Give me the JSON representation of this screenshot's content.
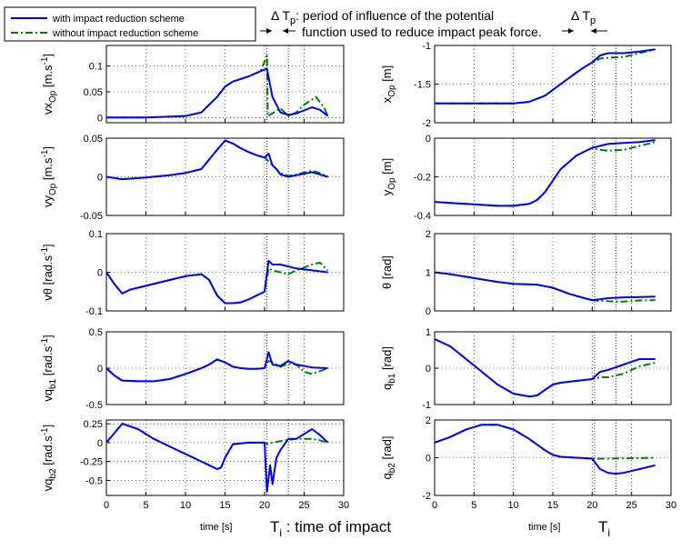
{
  "figure": {
    "legend": [
      {
        "label": "with impact reduction scheme",
        "color": "#0000ff",
        "dash": "solid"
      },
      {
        "label": "without impact reduction scheme",
        "color": "#008000",
        "dash": "dashdot"
      }
    ],
    "annotation_title": "Δ T",
    "annotation_title_sub": "p",
    "annotation_line1": ": period of influence of the potential",
    "annotation_line2": "function used to reduce impact peak force.",
    "annotation_right": "Δ T",
    "annotation_right_sub": "p",
    "impact_label": "T",
    "impact_label_sub": "i",
    "impact_label_rest": " : time of impact",
    "impact_label_right": "T",
    "impact_label_right_sub": "i",
    "xlabel_left": "time [s]",
    "xlabel_right": "time [s]"
  },
  "chart_data": [
    {
      "type": "line",
      "panel": "left-1",
      "ylabel": "vx_Op [m.s^-1]",
      "ylim": [
        -0.01,
        0.14
      ],
      "yticks": [
        0,
        0.05,
        0.1
      ],
      "yticklabels": [
        "0",
        "0.05",
        "0.1"
      ],
      "xlim": [
        0,
        30
      ],
      "series": [
        {
          "name": "with impact reduction scheme",
          "x": [
            0,
            5,
            10,
            12,
            14,
            15,
            16,
            18,
            19.5,
            20.3,
            21,
            21.5,
            22,
            23,
            24,
            26,
            27,
            28
          ],
          "y": [
            0,
            0,
            0.003,
            0.01,
            0.04,
            0.06,
            0.07,
            0.08,
            0.09,
            0.095,
            0.04,
            0.025,
            0.01,
            0.005,
            0.008,
            0.02,
            0.015,
            0.003
          ]
        },
        {
          "name": "without impact reduction scheme",
          "x": [
            0,
            5,
            10,
            12,
            14,
            15,
            16,
            18,
            19.5,
            20.3,
            20.4,
            21,
            22,
            23,
            24,
            25,
            26.5,
            27.5,
            28
          ],
          "y": [
            0,
            0,
            0.003,
            0.01,
            0.04,
            0.06,
            0.07,
            0.08,
            0.09,
            0.12,
            0.003,
            0.008,
            0.018,
            0.003,
            0.01,
            0.025,
            0.04,
            0.02,
            0.003
          ]
        }
      ]
    },
    {
      "type": "line",
      "panel": "left-2",
      "ylabel": "vy_Op [m.s^-1]",
      "ylim": [
        -0.05,
        0.05
      ],
      "yticks": [
        -0.05,
        0,
        0.05
      ],
      "yticklabels": [
        "-0.05",
        "0",
        "0.05"
      ],
      "xlim": [
        0,
        30
      ],
      "series": [
        {
          "name": "with impact reduction scheme",
          "x": [
            0,
            2,
            5,
            8,
            10,
            12,
            14,
            15,
            16,
            17,
            18,
            19,
            20,
            20.5,
            21,
            21.5,
            22,
            23,
            24,
            26,
            27,
            28
          ],
          "y": [
            0,
            -0.003,
            -0.001,
            0.002,
            0.005,
            0.01,
            0.035,
            0.047,
            0.043,
            0.037,
            0.032,
            0.028,
            0.025,
            0.03,
            0.015,
            0.01,
            0.003,
            0,
            0.002,
            0.006,
            0.003,
            0
          ]
        },
        {
          "name": "without impact reduction scheme",
          "x": [
            0,
            2,
            5,
            8,
            10,
            12,
            14,
            15,
            16,
            17,
            18,
            19,
            20,
            20.5,
            21,
            22,
            23,
            24,
            26,
            27,
            28
          ],
          "y": [
            0,
            -0.003,
            -0.001,
            0.002,
            0.005,
            0.01,
            0.035,
            0.047,
            0.043,
            0.037,
            0.032,
            0.028,
            0.025,
            0.02,
            0.015,
            0.005,
            0.001,
            0.003,
            0.008,
            0.005,
            0
          ]
        }
      ]
    },
    {
      "type": "line",
      "panel": "left-3",
      "ylabel": "vθ [rad.s^-1]",
      "ylim": [
        -0.1,
        0.1
      ],
      "yticks": [
        -0.1,
        0,
        0.1
      ],
      "yticklabels": [
        "-0.1",
        "0",
        "0.1"
      ],
      "xlim": [
        0,
        30
      ],
      "series": [
        {
          "name": "with impact reduction scheme",
          "x": [
            0,
            1,
            2,
            3,
            5,
            8,
            10,
            12,
            13,
            14,
            15,
            16,
            17,
            18,
            19,
            20,
            20.5,
            21,
            22,
            23,
            24,
            26,
            28
          ],
          "y": [
            0,
            -0.03,
            -0.055,
            -0.045,
            -0.035,
            -0.02,
            -0.01,
            -0.005,
            -0.02,
            -0.06,
            -0.08,
            -0.08,
            -0.078,
            -0.07,
            -0.06,
            -0.05,
            0.03,
            0.02,
            0.02,
            0.015,
            0.01,
            0.005,
            0
          ]
        },
        {
          "name": "without impact reduction scheme",
          "x": [
            0,
            1,
            2,
            3,
            5,
            8,
            10,
            12,
            13,
            14,
            15,
            16,
            17,
            18,
            19,
            20,
            20.5,
            21,
            22,
            23,
            24,
            26,
            27,
            28
          ],
          "y": [
            0,
            -0.03,
            -0.055,
            -0.045,
            -0.035,
            -0.02,
            -0.01,
            -0.005,
            -0.02,
            -0.06,
            -0.08,
            -0.08,
            -0.078,
            -0.07,
            -0.06,
            -0.05,
            0.01,
            0.005,
            0,
            -0.005,
            0.005,
            0.02,
            0.025,
            0.005
          ]
        }
      ]
    },
    {
      "type": "line",
      "panel": "left-4",
      "ylabel": "vq_b1 [rad.s^-1]",
      "ylim": [
        -0.5,
        0.5
      ],
      "yticks": [
        -0.5,
        0,
        0.5
      ],
      "yticklabels": [
        "-0.5",
        "0",
        "0.5"
      ],
      "xlim": [
        0,
        30
      ],
      "series": [
        {
          "name": "with impact reduction scheme",
          "x": [
            0,
            1,
            2,
            4,
            6,
            8,
            10,
            12,
            13,
            14,
            15,
            16,
            17,
            18,
            19,
            20,
            20.5,
            21,
            22,
            23,
            24,
            26,
            28
          ],
          "y": [
            0,
            -0.1,
            -0.17,
            -0.18,
            -0.18,
            -0.15,
            -0.08,
            0,
            0.05,
            0.12,
            0.08,
            0.02,
            0,
            -0.01,
            -0.01,
            0,
            0.22,
            0.05,
            0.03,
            0.1,
            0.05,
            0.01,
            0
          ]
        },
        {
          "name": "without impact reduction scheme",
          "x": [
            0,
            1,
            2,
            4,
            6,
            8,
            10,
            12,
            13,
            14,
            15,
            16,
            17,
            18,
            19,
            20,
            20.5,
            21,
            22,
            23,
            24,
            25,
            26,
            28
          ],
          "y": [
            0,
            -0.1,
            -0.17,
            -0.18,
            -0.18,
            -0.15,
            -0.08,
            0,
            0.05,
            0.12,
            0.08,
            0.02,
            0,
            -0.01,
            -0.01,
            0,
            0.1,
            0.08,
            0.02,
            0.06,
            0.05,
            -0.05,
            -0.08,
            0
          ]
        }
      ]
    },
    {
      "type": "line",
      "panel": "left-5",
      "ylabel": "vq_b2 [rad.s^-1]",
      "ylim": [
        -0.7,
        0.3
      ],
      "yticks": [
        -0.5,
        -0.25,
        0,
        0.25
      ],
      "yticklabels": [
        "-0.5",
        "-0.25",
        "0",
        "0.25"
      ],
      "xlim": [
        0,
        30
      ],
      "series": [
        {
          "name": "with impact reduction scheme",
          "x": [
            0,
            2,
            4,
            6,
            8,
            10,
            12,
            14,
            14.5,
            15,
            16,
            18,
            19,
            20,
            20.3,
            20.7,
            21,
            21.5,
            22,
            23,
            24,
            26,
            27,
            28
          ],
          "y": [
            0,
            0.25,
            0.18,
            0.05,
            -0.05,
            -0.15,
            -0.25,
            -0.35,
            -0.33,
            -0.2,
            -0.02,
            0,
            0,
            0,
            -0.65,
            -0.3,
            -0.55,
            -0.2,
            -0.1,
            0.05,
            0.05,
            0.18,
            0.1,
            0
          ]
        },
        {
          "name": "without impact reduction scheme",
          "x": [
            0,
            2,
            4,
            6,
            8,
            10,
            12,
            14,
            14.5,
            15,
            16,
            18,
            19,
            20,
            20.5,
            21,
            22,
            24,
            26,
            27,
            28
          ],
          "y": [
            0,
            0.25,
            0.18,
            0.05,
            -0.05,
            -0.15,
            -0.25,
            -0.35,
            -0.33,
            -0.2,
            -0.02,
            0,
            0,
            0,
            -0.02,
            0,
            0.02,
            0.05,
            0.05,
            0.03,
            0
          ]
        }
      ]
    },
    {
      "type": "line",
      "panel": "right-1",
      "ylabel": "x_Op [m]",
      "ylim": [
        -2,
        -1
      ],
      "yticks": [
        -2,
        -1.5,
        -1
      ],
      "yticklabels": [
        "-2",
        "-1.5",
        "-1"
      ],
      "xlim": [
        0,
        30
      ],
      "series": [
        {
          "name": "with impact reduction scheme",
          "x": [
            0,
            5,
            10,
            12,
            14,
            16,
            18,
            19,
            20,
            21,
            22,
            24,
            26,
            28
          ],
          "y": [
            -1.75,
            -1.75,
            -1.75,
            -1.73,
            -1.65,
            -1.5,
            -1.35,
            -1.28,
            -1.22,
            -1.13,
            -1.1,
            -1.1,
            -1.08,
            -1.05
          ]
        },
        {
          "name": "without impact reduction scheme",
          "x": [
            0,
            5,
            10,
            12,
            14,
            16,
            18,
            19,
            20,
            21,
            22,
            24,
            26,
            28
          ],
          "y": [
            -1.75,
            -1.75,
            -1.75,
            -1.73,
            -1.65,
            -1.5,
            -1.35,
            -1.28,
            -1.22,
            -1.17,
            -1.16,
            -1.15,
            -1.1,
            -1.05
          ]
        }
      ]
    },
    {
      "type": "line",
      "panel": "right-2",
      "ylabel": "y_Op [m]",
      "ylim": [
        -0.4,
        0
      ],
      "yticks": [
        -0.4,
        -0.2,
        0
      ],
      "yticklabels": [
        "-0.4",
        "-0.2",
        "0"
      ],
      "xlim": [
        0,
        30
      ],
      "series": [
        {
          "name": "with impact reduction scheme",
          "x": [
            0,
            4,
            8,
            10,
            12,
            13,
            14,
            15,
            16,
            18,
            20,
            21,
            22,
            24,
            26,
            28
          ],
          "y": [
            -0.33,
            -0.34,
            -0.35,
            -0.35,
            -0.34,
            -0.32,
            -0.28,
            -0.22,
            -0.16,
            -0.09,
            -0.05,
            -0.04,
            -0.03,
            -0.025,
            -0.02,
            -0.01
          ]
        },
        {
          "name": "without impact reduction scheme",
          "x": [
            0,
            4,
            8,
            10,
            12,
            13,
            14,
            15,
            16,
            18,
            20,
            21,
            22,
            24,
            26,
            28
          ],
          "y": [
            -0.33,
            -0.34,
            -0.35,
            -0.35,
            -0.34,
            -0.32,
            -0.28,
            -0.22,
            -0.16,
            -0.09,
            -0.05,
            -0.06,
            -0.065,
            -0.06,
            -0.04,
            -0.02
          ]
        }
      ]
    },
    {
      "type": "line",
      "panel": "right-3",
      "ylabel": "θ [rad]",
      "ylim": [
        0,
        2
      ],
      "yticks": [
        0,
        1,
        2
      ],
      "yticklabels": [
        "0",
        "1",
        "2"
      ],
      "xlim": [
        0,
        30
      ],
      "series": [
        {
          "name": "with impact reduction scheme",
          "x": [
            0,
            2,
            5,
            8,
            10,
            13,
            15,
            17,
            19,
            20,
            21,
            22,
            24,
            26,
            28
          ],
          "y": [
            1.0,
            0.95,
            0.85,
            0.75,
            0.7,
            0.68,
            0.6,
            0.45,
            0.33,
            0.28,
            0.3,
            0.33,
            0.35,
            0.36,
            0.37
          ]
        },
        {
          "name": "without impact reduction scheme",
          "x": [
            0,
            2,
            5,
            8,
            10,
            13,
            15,
            17,
            19,
            20,
            21,
            22,
            24,
            26,
            28
          ],
          "y": [
            1.0,
            0.95,
            0.85,
            0.75,
            0.7,
            0.68,
            0.6,
            0.45,
            0.33,
            0.28,
            0.26,
            0.25,
            0.24,
            0.27,
            0.28
          ]
        }
      ]
    },
    {
      "type": "line",
      "panel": "right-4",
      "ylabel": "q_b1 [rad]",
      "ylim": [
        -1,
        1
      ],
      "yticks": [
        -1,
        0,
        1
      ],
      "yticklabels": [
        "-1",
        "0",
        "1"
      ],
      "xlim": [
        0,
        30
      ],
      "series": [
        {
          "name": "with impact reduction scheme",
          "x": [
            0,
            2,
            4,
            6,
            8,
            10,
            12,
            13,
            14,
            15,
            16,
            18,
            20,
            21,
            22,
            24,
            26,
            28
          ],
          "y": [
            0.8,
            0.6,
            0.25,
            -0.1,
            -0.45,
            -0.7,
            -0.78,
            -0.75,
            -0.6,
            -0.45,
            -0.4,
            -0.35,
            -0.3,
            -0.1,
            -0.05,
            0.1,
            0.25,
            0.25
          ]
        },
        {
          "name": "without impact reduction scheme",
          "x": [
            0,
            2,
            4,
            6,
            8,
            10,
            12,
            13,
            14,
            15,
            16,
            18,
            20,
            21,
            22,
            24,
            26,
            28
          ],
          "y": [
            0.8,
            0.6,
            0.25,
            -0.1,
            -0.45,
            -0.7,
            -0.78,
            -0.75,
            -0.6,
            -0.45,
            -0.4,
            -0.35,
            -0.3,
            -0.25,
            -0.25,
            -0.15,
            0.05,
            0.15
          ]
        }
      ]
    },
    {
      "type": "line",
      "panel": "right-5",
      "ylabel": "q_b2 [rad]",
      "ylim": [
        -2,
        2
      ],
      "yticks": [
        -2,
        0,
        2
      ],
      "yticklabels": [
        "-2",
        "0",
        "2"
      ],
      "xlim": [
        0,
        30
      ],
      "series": [
        {
          "name": "with impact reduction scheme",
          "x": [
            0,
            2,
            4,
            6,
            8,
            10,
            12,
            14,
            15,
            16,
            18,
            20,
            21,
            22,
            23,
            24,
            26,
            28
          ],
          "y": [
            0.8,
            1.1,
            1.5,
            1.75,
            1.75,
            1.5,
            1.0,
            0.4,
            0.15,
            0.05,
            0,
            -0.05,
            -0.6,
            -0.8,
            -0.85,
            -0.8,
            -0.6,
            -0.4
          ]
        },
        {
          "name": "without impact reduction scheme",
          "x": [
            0,
            2,
            4,
            6,
            8,
            10,
            12,
            14,
            15,
            16,
            18,
            20,
            21,
            22,
            24,
            26,
            28
          ],
          "y": [
            0.8,
            1.1,
            1.5,
            1.75,
            1.75,
            1.5,
            1.0,
            0.4,
            0.15,
            0.05,
            0,
            -0.05,
            -0.05,
            -0.05,
            -0.03,
            -0.02,
            0
          ]
        }
      ]
    }
  ]
}
